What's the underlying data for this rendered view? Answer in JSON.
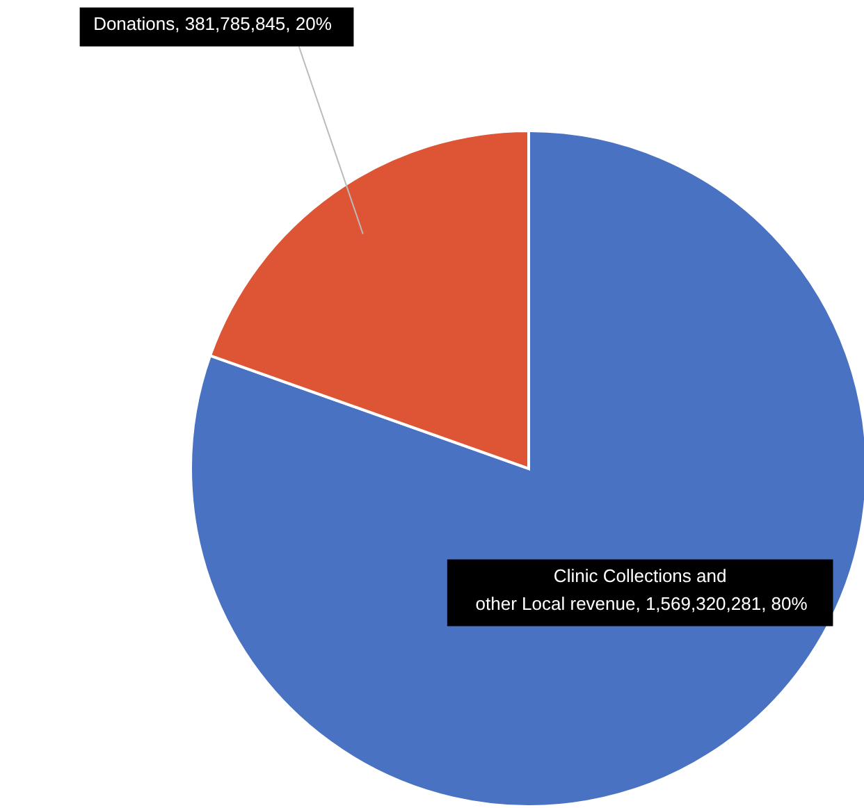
{
  "chart_data": {
    "type": "pie",
    "categories": [
      "Clinic Collections and other Local revenue",
      "Donations"
    ],
    "values": [
      1569320281,
      381785845
    ],
    "colors": [
      "#4a72c2",
      "#dd5535"
    ],
    "value_labels": [
      ", 1,569,320,281, 80%",
      ", 381,785,845, 20%"
    ]
  }
}
